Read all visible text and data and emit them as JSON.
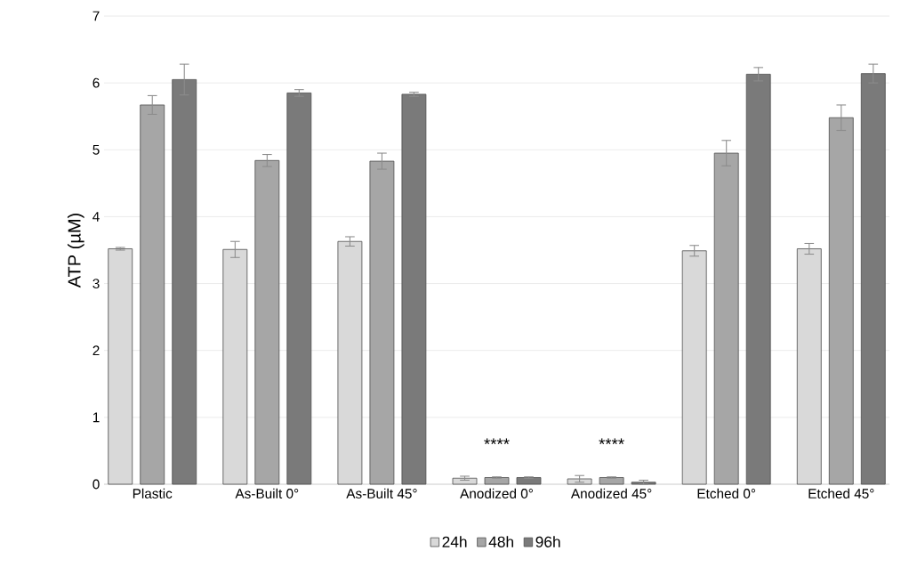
{
  "chart_data": {
    "type": "bar",
    "ylabel": "ATP (µM)",
    "categories": [
      "Plastic",
      "As-Built 0°",
      "As-Built 45°",
      "Anodized 0°",
      "Anodized 45°",
      "Etched 0°",
      "Etched 45°"
    ],
    "series": [
      {
        "name": "24h",
        "color": "#d9d9d9",
        "values": [
          3.52,
          3.51,
          3.63,
          0.09,
          0.08,
          3.49,
          3.52
        ],
        "errors": [
          0.02,
          0.12,
          0.07,
          0.03,
          0.05,
          0.08,
          0.08
        ]
      },
      {
        "name": "48h",
        "color": "#a6a6a6",
        "values": [
          5.67,
          4.84,
          4.83,
          0.1,
          0.1,
          4.95,
          5.48
        ],
        "errors": [
          0.14,
          0.09,
          0.12,
          0.01,
          0.01,
          0.19,
          0.19
        ]
      },
      {
        "name": "96h",
        "color": "#7a7a7a",
        "values": [
          6.05,
          5.85,
          5.83,
          0.1,
          0.03,
          6.13,
          6.14
        ],
        "errors": [
          0.23,
          0.05,
          0.03,
          0.01,
          0.03,
          0.1,
          0.14
        ]
      }
    ],
    "annotations": [
      "****",
      "****"
    ],
    "ylim": [
      0,
      7
    ],
    "yticks": [
      0,
      1,
      2,
      3,
      4,
      5,
      6,
      7
    ],
    "grid": "y",
    "legend": "bottom"
  }
}
